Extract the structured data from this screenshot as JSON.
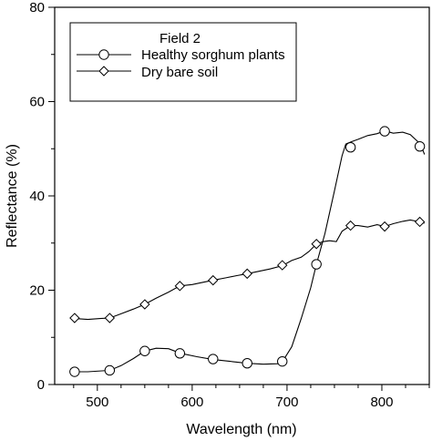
{
  "chart_data": {
    "type": "line",
    "xlabel": "Wavelength (nm)",
    "ylabel": "Reflectance (%)",
    "xlim": [
      455,
      850
    ],
    "ylim": [
      0,
      80
    ],
    "x_ticks": [
      500,
      600,
      700,
      800
    ],
    "y_ticks": [
      0,
      20,
      40,
      60,
      80
    ],
    "grid": false,
    "legend": {
      "title": "Field 2",
      "position": "top-left"
    },
    "series": [
      {
        "name": "Healthy sorghum plants",
        "marker": "circle",
        "curve": [
          [
            476,
            2.7
          ],
          [
            490,
            2.7
          ],
          [
            505,
            2.9
          ],
          [
            513,
            3.0
          ],
          [
            525,
            4.0
          ],
          [
            538,
            5.5
          ],
          [
            550,
            7.1
          ],
          [
            562,
            7.7
          ],
          [
            575,
            7.6
          ],
          [
            588,
            6.6
          ],
          [
            605,
            5.9
          ],
          [
            622,
            5.3
          ],
          [
            640,
            4.9
          ],
          [
            658,
            4.5
          ],
          [
            675,
            4.3
          ],
          [
            690,
            4.4
          ],
          [
            695,
            4.8
          ],
          [
            705,
            8.0
          ],
          [
            715,
            14.0
          ],
          [
            725,
            20.5
          ],
          [
            731,
            25.5
          ],
          [
            740,
            32.0
          ],
          [
            750,
            41.0
          ],
          [
            758,
            48.5
          ],
          [
            762,
            51.0
          ],
          [
            768,
            51.5
          ],
          [
            775,
            52.0
          ],
          [
            785,
            52.8
          ],
          [
            795,
            53.2
          ],
          [
            803,
            53.8
          ],
          [
            812,
            53.3
          ],
          [
            822,
            53.5
          ],
          [
            830,
            53.0
          ],
          [
            838,
            51.5
          ],
          [
            842,
            50.3
          ],
          [
            845,
            48.8
          ]
        ],
        "markers": [
          [
            476,
            2.7
          ],
          [
            513,
            3.0
          ],
          [
            550,
            7.1
          ],
          [
            587,
            6.6
          ],
          [
            622,
            5.4
          ],
          [
            658,
            4.5
          ],
          [
            695,
            4.9
          ],
          [
            731,
            25.5
          ],
          [
            767,
            50.3
          ],
          [
            803,
            53.7
          ],
          [
            840,
            50.5
          ]
        ]
      },
      {
        "name": "Dry bare soil",
        "marker": "diamond",
        "curve": [
          [
            476,
            14.0
          ],
          [
            490,
            13.8
          ],
          [
            503,
            14.0
          ],
          [
            513,
            14.1
          ],
          [
            525,
            15.0
          ],
          [
            538,
            16.0
          ],
          [
            550,
            17.0
          ],
          [
            562,
            18.3
          ],
          [
            575,
            19.6
          ],
          [
            587,
            20.9
          ],
          [
            600,
            21.2
          ],
          [
            612,
            21.7
          ],
          [
            622,
            22.1
          ],
          [
            635,
            22.6
          ],
          [
            647,
            23.1
          ],
          [
            658,
            23.5
          ],
          [
            670,
            24.0
          ],
          [
            682,
            24.5
          ],
          [
            695,
            25.2
          ],
          [
            705,
            26.3
          ],
          [
            715,
            27.0
          ],
          [
            723,
            28.2
          ],
          [
            731,
            29.8
          ],
          [
            738,
            30.3
          ],
          [
            745,
            30.5
          ],
          [
            752,
            30.3
          ],
          [
            758,
            32.5
          ],
          [
            767,
            33.7
          ],
          [
            775,
            33.7
          ],
          [
            785,
            33.4
          ],
          [
            795,
            33.9
          ],
          [
            803,
            33.5
          ],
          [
            812,
            34.1
          ],
          [
            822,
            34.6
          ],
          [
            830,
            34.9
          ],
          [
            840,
            34.5
          ],
          [
            845,
            34.2
          ]
        ],
        "markers": [
          [
            476,
            14.1
          ],
          [
            513,
            14.1
          ],
          [
            550,
            17.0
          ],
          [
            587,
            20.9
          ],
          [
            622,
            22.1
          ],
          [
            658,
            23.5
          ],
          [
            695,
            25.3
          ],
          [
            731,
            29.8
          ],
          [
            767,
            33.7
          ],
          [
            803,
            33.5
          ],
          [
            840,
            34.5
          ]
        ]
      }
    ]
  }
}
